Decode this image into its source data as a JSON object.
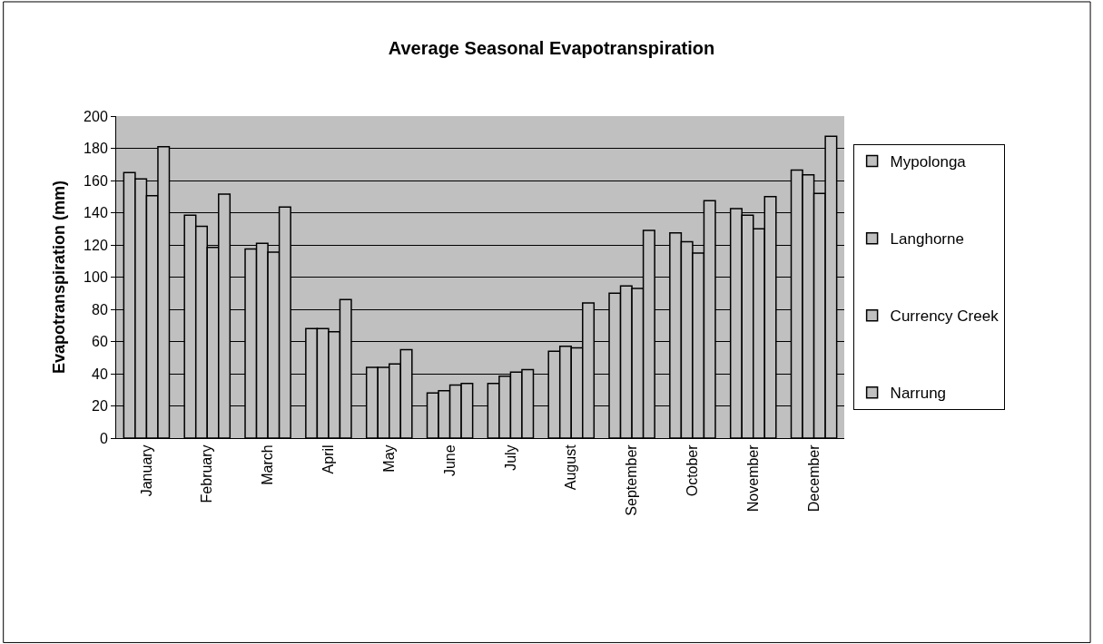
{
  "chart_data": {
    "type": "bar",
    "title": "Average Seasonal Evapotranspiration",
    "ylabel": "Evapotranspiration (mm)",
    "categories": [
      "January",
      "February",
      "March",
      "April",
      "May",
      "June",
      "July",
      "August",
      "September",
      "October",
      "November",
      "December"
    ],
    "series": [
      {
        "name": "Mypolonga",
        "color": "#c0c0c0",
        "values": [
          165,
          138.5,
          117.5,
          68,
          44,
          28,
          34,
          54,
          90,
          127.5,
          142.5,
          166.5
        ]
      },
      {
        "name": "Langhorne",
        "color": "#c0c0c0",
        "values": [
          161,
          131.5,
          121,
          68,
          44,
          29.5,
          38.5,
          57,
          94.5,
          122,
          138.5,
          163.5
        ]
      },
      {
        "name": "Currency Creek",
        "color": "#c0c0c0",
        "values": [
          150.5,
          118.5,
          115.5,
          66,
          46,
          33,
          41,
          56,
          93,
          115,
          130,
          152
        ]
      },
      {
        "name": "Narrung",
        "color": "#c0c0c0",
        "values": [
          181,
          151.5,
          143.5,
          86,
          55,
          34,
          42.5,
          84,
          129,
          147.5,
          150,
          187.5
        ]
      }
    ],
    "ylim": [
      0,
      200
    ],
    "yticks": [
      0,
      20,
      40,
      60,
      80,
      100,
      120,
      140,
      160,
      180,
      200
    ],
    "grid": "y",
    "legend": "right"
  }
}
